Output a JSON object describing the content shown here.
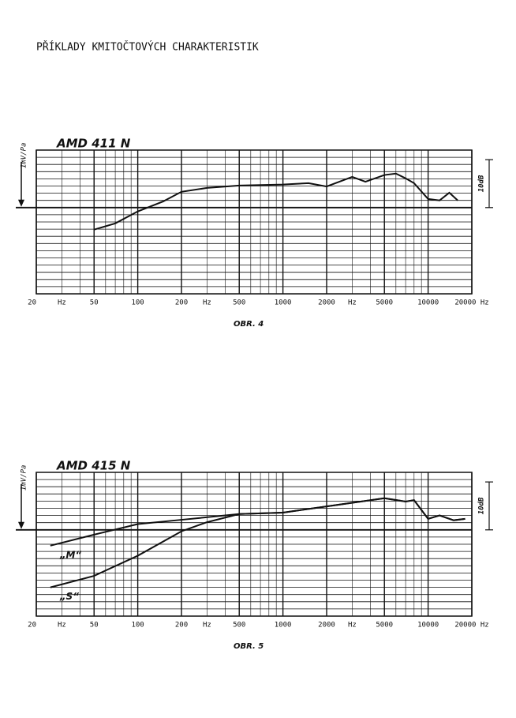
{
  "page_title": "PŘÍKLADY KMITOČTOVÝCH CHARAKTERISTIK",
  "chart_data": [
    {
      "type": "line",
      "title": "AMD 411 N",
      "caption": "OBR. 4",
      "ylabel": "1mV/Pa",
      "scale_label": "10dB",
      "xscale": "log",
      "xlim": [
        20,
        20000
      ],
      "xticks": [
        20,
        50,
        100,
        200,
        500,
        1000,
        2000,
        5000,
        10000,
        {
          "value": 20000,
          "label": "20000 Hz"
        }
      ],
      "x_unit_labels": [
        {
          "value": 30,
          "label": "Hz"
        },
        {
          "value": 300,
          "label": "Hz"
        },
        {
          "value": 3000,
          "label": "Hz"
        }
      ],
      "ylim": [
        -18,
        12
      ],
      "yticks": [
        -18,
        -16.5,
        -15,
        -13.5,
        -12,
        -10.5,
        -9,
        -7.5,
        -6,
        -4.5,
        -3,
        -1.5,
        0,
        1.5,
        3,
        4.5,
        6,
        7.5,
        9,
        10.5,
        12
      ],
      "grid": true,
      "series": [
        {
          "color": "#111111",
          "x": [
            50,
            70,
            100,
            150,
            200,
            300,
            500,
            1000,
            1500,
            2000,
            3000,
            3700,
            5000,
            6000,
            7000,
            8000,
            10000,
            12000,
            14000,
            16000
          ],
          "values": [
            -4.6,
            -3.3,
            -0.8,
            1.3,
            3.3,
            4.1,
            4.6,
            4.8,
            5.1,
            4.4,
            6.4,
            5.4,
            6.8,
            7.1,
            6.1,
            5.1,
            1.8,
            1.5,
            3.1,
            1.5
          ]
        }
      ]
    },
    {
      "type": "line",
      "title": "AMD 415 N",
      "caption": "OBR. 5",
      "ylabel": "1mV/Pa",
      "scale_label": "10dB",
      "xscale": "log",
      "xlim": [
        20,
        20000
      ],
      "xticks": [
        20,
        50,
        100,
        200,
        500,
        1000,
        2000,
        5000,
        10000,
        {
          "value": 20000,
          "label": "20000 Hz"
        }
      ],
      "x_unit_labels": [
        {
          "value": 30,
          "label": "Hz"
        },
        {
          "value": 300,
          "label": "Hz"
        },
        {
          "value": 3000,
          "label": "Hz"
        }
      ],
      "ylim": [
        -18,
        12
      ],
      "yticks": [
        -18,
        -16.5,
        -15,
        -13.5,
        -12,
        -10.5,
        -9,
        -7.5,
        -6,
        -4.5,
        -3,
        -1.5,
        0,
        1.5,
        3,
        4.5,
        6,
        7.5,
        9,
        10.5,
        12
      ],
      "grid": true,
      "series": [
        {
          "name": "„M“",
          "color": "#111111",
          "x": [
            25,
            50,
            100,
            200,
            500,
            1000,
            2000,
            5000,
            7000,
            8000,
            10000,
            12000,
            15000,
            18000
          ],
          "values": [
            -3.3,
            -1.0,
            1.2,
            2.1,
            3.3,
            3.6,
            4.9,
            6.6,
            5.9,
            6.2,
            2.3,
            3.0,
            2.0,
            2.3
          ]
        },
        {
          "name": "„S“",
          "color": "#111111",
          "x": [
            25,
            50,
            100,
            200,
            300,
            500,
            1000,
            2000,
            5000,
            7000,
            8000,
            10000,
            12000,
            15000,
            18000
          ],
          "values": [
            -12.0,
            -9.6,
            -5.4,
            -0.3,
            1.6,
            3.3,
            3.6,
            4.9,
            6.6,
            5.9,
            6.2,
            2.3,
            3.0,
            2.0,
            2.3
          ]
        }
      ]
    }
  ]
}
